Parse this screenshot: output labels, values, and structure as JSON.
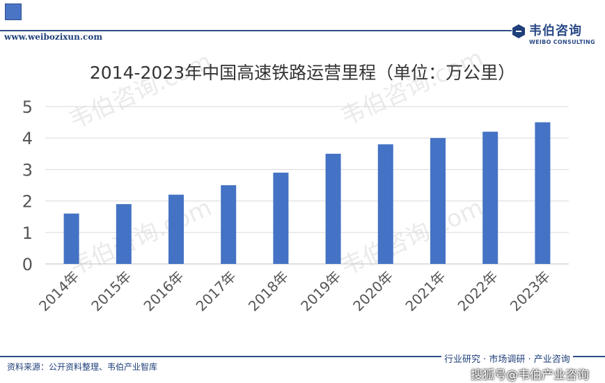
{
  "header": {
    "site_url": "www.weibozixun.com",
    "brand_name": "韦伯咨询",
    "brand_sub": "WEIBO CONSULTING"
  },
  "watermark_text": "韦伯咨询.com",
  "chart_data": {
    "type": "bar",
    "title": "2014-2023年中国高速铁路运营里程（单位：万公里）",
    "categories": [
      "2014年",
      "2015年",
      "2016年",
      "2017年",
      "2018年",
      "2019年",
      "2020年",
      "2021年",
      "2022年",
      "2023年"
    ],
    "values": [
      1.6,
      1.9,
      2.2,
      2.5,
      2.9,
      3.5,
      3.8,
      4.0,
      4.2,
      4.5
    ],
    "yticks": [
      "0",
      "1",
      "2",
      "3",
      "4",
      "5"
    ],
    "ylim": [
      0,
      5
    ],
    "grid": true,
    "legend": "none",
    "bar_color": "#4472c4"
  },
  "footer": {
    "source": "资料来源：公开资料整理、韦伯产业智库",
    "slogan": "行业研究 · 市场调研 · 产业咨询",
    "sohu": "搜狐号@韦伯产业咨询"
  }
}
